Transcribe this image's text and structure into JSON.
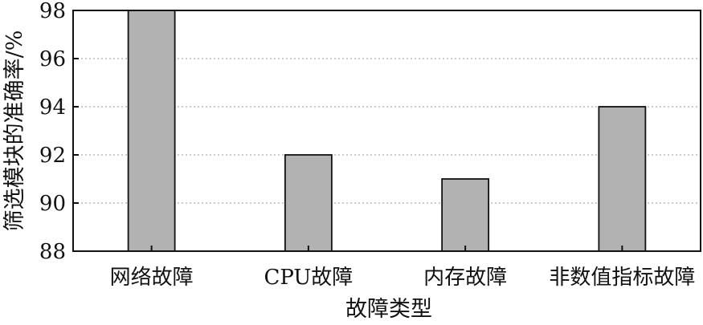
{
  "chart_data": {
    "type": "bar",
    "categories": [
      "网络故障",
      "CPU故障",
      "内存故障",
      "非数值指标故障"
    ],
    "values": [
      98,
      92,
      91,
      94
    ],
    "title": "",
    "xlabel": "故障类型",
    "ylabel": "筛选模块的准确率/%",
    "ylim": [
      88,
      98
    ],
    "yticks": [
      "88",
      "90",
      "92",
      "94",
      "96",
      "98"
    ],
    "grid": true,
    "bar_color": "#b2b2b2"
  }
}
